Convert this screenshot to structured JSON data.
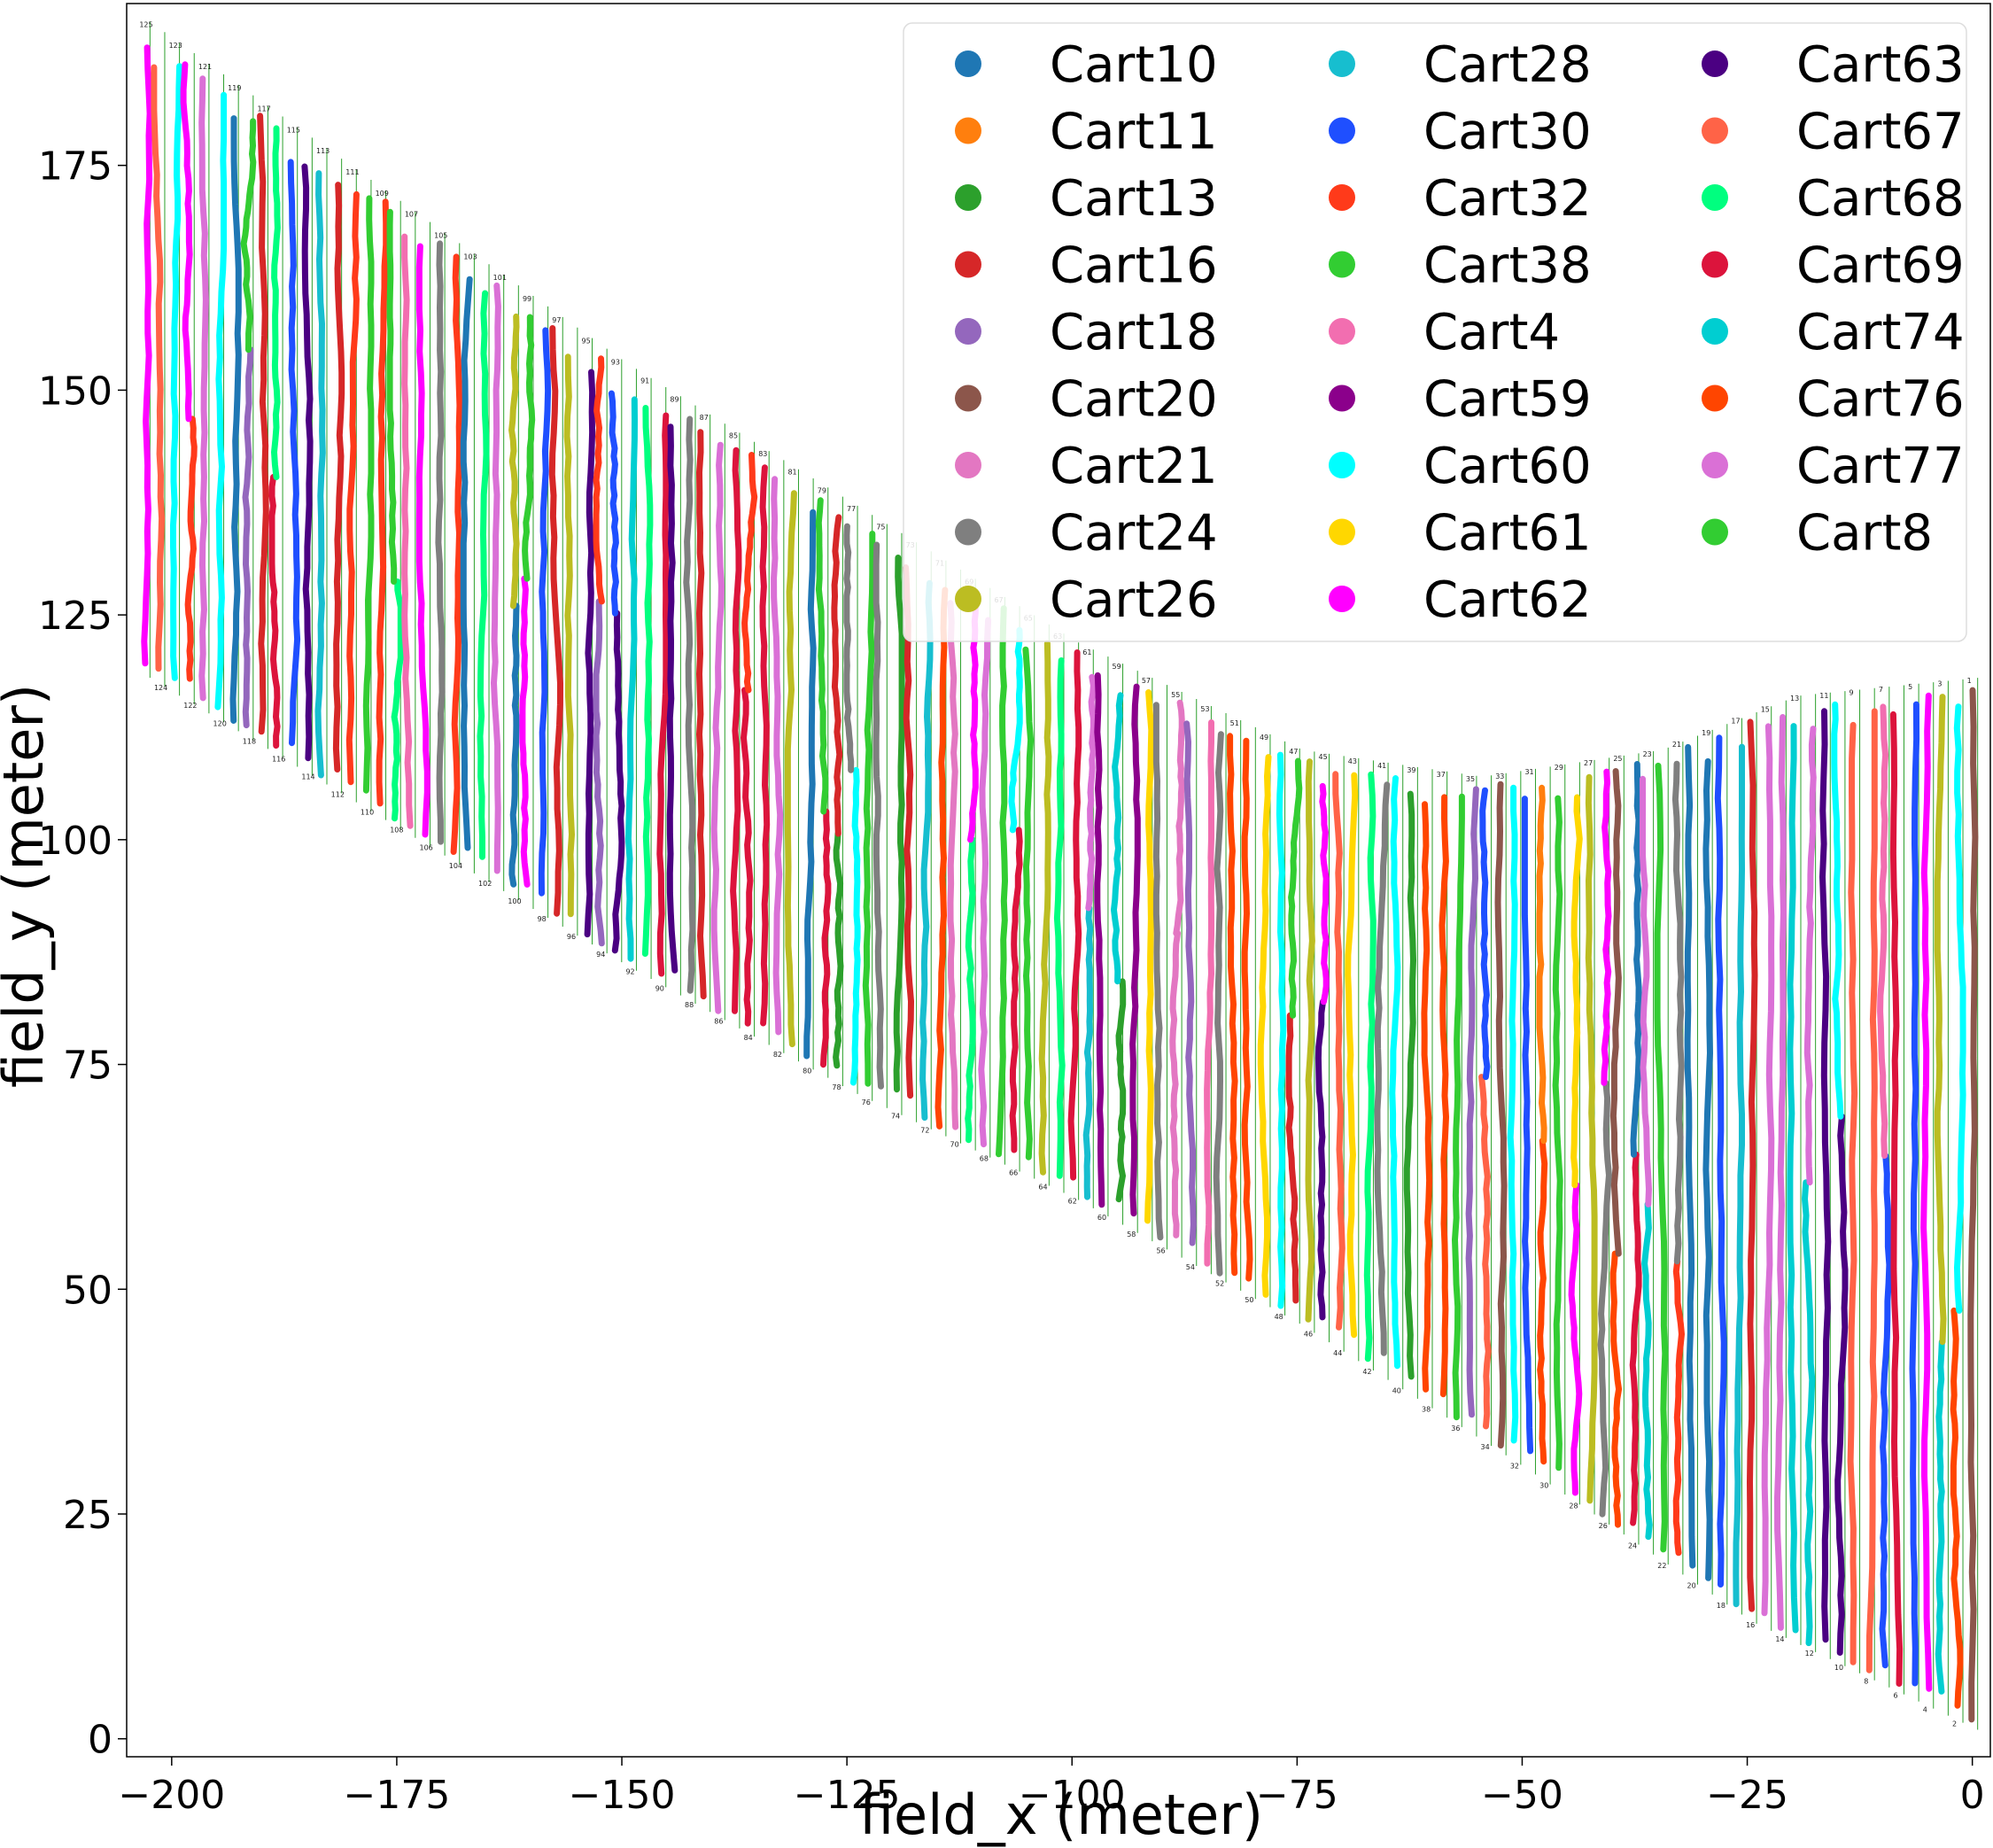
{
  "chart_data": {
    "type": "scatter",
    "title": "",
    "xlabel": "field_x (meter)",
    "ylabel": "field_y (meter)",
    "xlim": [
      -205,
      2
    ],
    "ylim": [
      -2,
      193
    ],
    "xticks": [
      -200,
      -175,
      -150,
      -125,
      -100,
      -75,
      -50,
      -25,
      0
    ],
    "xtick_labels": [
      "−200",
      "−175",
      "−150",
      "−125",
      "−100",
      "−75",
      "−50",
      "−25",
      "0"
    ],
    "yticks": [
      0,
      25,
      50,
      75,
      100,
      125,
      150,
      175
    ],
    "ytick_labels": [
      "0",
      "25",
      "50",
      "75",
      "100",
      "125",
      "150",
      "175"
    ],
    "legend_location": "top-right",
    "legend_columns": 3,
    "series": [
      {
        "name": "Cart10",
        "color": "#1f77b4"
      },
      {
        "name": "Cart11",
        "color": "#ff7f0e"
      },
      {
        "name": "Cart13",
        "color": "#2ca02c"
      },
      {
        "name": "Cart16",
        "color": "#d62728"
      },
      {
        "name": "Cart18",
        "color": "#9467bd"
      },
      {
        "name": "Cart20",
        "color": "#8c564b"
      },
      {
        "name": "Cart21",
        "color": "#e377c2"
      },
      {
        "name": "Cart24",
        "color": "#7f7f7f"
      },
      {
        "name": "Cart26",
        "color": "#bcbd22"
      },
      {
        "name": "Cart28",
        "color": "#17becf"
      },
      {
        "name": "Cart30",
        "color": "#1f4fff"
      },
      {
        "name": "Cart32",
        "color": "#ff3a1a"
      },
      {
        "name": "Cart38",
        "color": "#32cd32"
      },
      {
        "name": "Cart4",
        "color": "#f26eb0"
      },
      {
        "name": "Cart59",
        "color": "#8b008b"
      },
      {
        "name": "Cart60",
        "color": "#00ffff"
      },
      {
        "name": "Cart61",
        "color": "#ffd700"
      },
      {
        "name": "Cart62",
        "color": "#ff00ff"
      },
      {
        "name": "Cart63",
        "color": "#4b0082"
      },
      {
        "name": "Cart67",
        "color": "#ff6347"
      },
      {
        "name": "Cart68",
        "color": "#00ff7f"
      },
      {
        "name": "Cart69",
        "color": "#dc143c"
      },
      {
        "name": "Cart74",
        "color": "#00ced1"
      },
      {
        "name": "Cart76",
        "color": "#ff4500"
      },
      {
        "name": "Cart77",
        "color": "#da70d6"
      },
      {
        "name": "Cart8",
        "color": "#32cd32"
      }
    ],
    "rows": {
      "count": 125,
      "x_start": -203,
      "x_end": 0,
      "boundary_top": [
        {
          "x": -203,
          "y": 191
        },
        {
          "x": -150,
          "y": 153
        },
        {
          "x": -100,
          "y": 122
        },
        {
          "x": -75,
          "y": 110
        },
        {
          "x": -55,
          "y": 107
        },
        {
          "x": -35,
          "y": 110
        },
        {
          "x": -20,
          "y": 116
        },
        {
          "x": 0,
          "y": 118
        }
      ],
      "boundary_bottom": [
        {
          "x": -203,
          "y": 118
        },
        {
          "x": -150,
          "y": 86
        },
        {
          "x": -125,
          "y": 72
        },
        {
          "x": -100,
          "y": 60
        },
        {
          "x": -75,
          "y": 46
        },
        {
          "x": -50,
          "y": 30
        },
        {
          "x": -25,
          "y": 13
        },
        {
          "x": 0,
          "y": 1
        }
      ],
      "row_label_color": "#2ca02c"
    }
  }
}
